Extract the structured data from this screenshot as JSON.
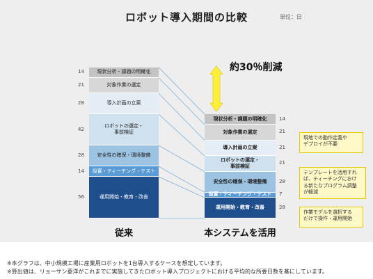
{
  "title": "ロボット導入期間の比較",
  "unit": "単位：日",
  "reduction_label": "約30％削減",
  "colors": {
    "phase_1": "#c3c3c3",
    "phase_2": "#d7d7d7",
    "phase_3": "#e5eef7",
    "phase_4": "#cfe0ef",
    "phase_5": "#9dc3e3",
    "phase_6": "#5b9bd5",
    "phase_7": "#1f4e8c",
    "arrow": "#ffef3a",
    "connector": "#7fb2d9"
  },
  "chart_data": {
    "type": "bar",
    "stacked": true,
    "title": "ロボット導入期間の比較",
    "unit": "単位：日",
    "categories": [
      "従来",
      "本システムを活用"
    ],
    "series": [
      {
        "name": "現状分析・課題の明確化",
        "values": [
          14,
          14
        ]
      },
      {
        "name": "対象作業の選定",
        "values": [
          21,
          21
        ]
      },
      {
        "name": "導入計画の立案",
        "values": [
          28,
          21
        ]
      },
      {
        "name": "ロボットの選定・\n事前検証",
        "values": [
          42,
          21
        ]
      },
      {
        "name": "安全性の確保・環境整備",
        "values": [
          28,
          28
        ]
      },
      {
        "name": "設置・ティーチング・テスト",
        "values": [
          14,
          7
        ]
      },
      {
        "name": "運用開始・教育・改善",
        "values": [
          56,
          28
        ]
      }
    ],
    "annotations": [
      "約30％削減",
      "現地での動作定義や\nデプロイが不要",
      "テンプレートを活用すれ\nば、ティーチングにおけ\nる新たなプログラム調整\nが軽減",
      "作業モデルを選択する\nだけで操作・運用開始"
    ]
  },
  "notes": [
    "現地での動作定義や\nデプロイが不要",
    "テンプレートを活用すれ\nば、ティーチングにおけ\nる新たなプログラム調整\nが軽減",
    "作業モデルを選択する\nだけで操作・運用開始"
  ],
  "footnotes": [
    "※本グラフは、中小規模工場に産業用ロボットを1台導入するケースを想定しています。",
    "※算出値は、リョーサン菱洋がこれまでに実施してきたロボット導入プロジェクトにおける平均的な所要日数を基にしています。"
  ]
}
